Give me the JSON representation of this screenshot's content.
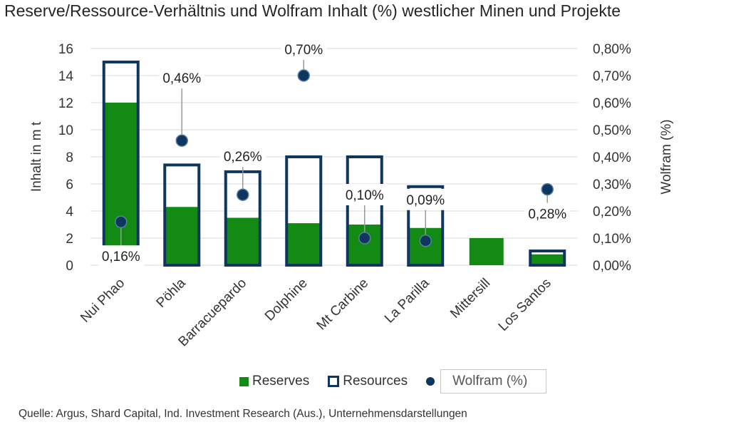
{
  "title": "Reserve/Ressource-Verhältnis und Wolfram Inhalt (%) westlicher Minen und Projekte",
  "source": "Quelle: Argus, Shard Capital, Ind. Investment Research (Aus.), Unternehmensdarstellungen",
  "legend": {
    "reserves": "Reserves",
    "resources": "Resources",
    "wolfram": "Wolfram (%)"
  },
  "colors": {
    "reserves": "#138a14",
    "resources": "#0f365e",
    "marker": "#0f365e",
    "grid": "#d9d9d9"
  },
  "chart_data": {
    "type": "bar",
    "title": "Reserve/Ressource-Verhältnis und Wolfram Inhalt (%) westlicher Minen und Projekte",
    "categories": [
      "Nui Phao",
      "Pöhla",
      "Barracuepardo",
      "Dolphine",
      "Mt Carbine",
      "La Parilla",
      "Mittersill",
      "Los Santos"
    ],
    "series": [
      {
        "name": "Reserves",
        "type": "bar",
        "axis": "left",
        "values": [
          12,
          4.3,
          3.5,
          3.1,
          3.0,
          2.75,
          2.0,
          0.8
        ]
      },
      {
        "name": "Resources",
        "type": "bar-outline",
        "axis": "left",
        "values": [
          15,
          7.4,
          6.9,
          8.0,
          8.0,
          5.8,
          null,
          1.05
        ]
      },
      {
        "name": "Wolfram (%)",
        "type": "scatter",
        "axis": "right",
        "values": [
          0.16,
          0.46,
          0.26,
          0.7,
          0.1,
          0.09,
          null,
          0.28
        ],
        "labels": [
          "0,16%",
          "0,46%",
          "0,26%",
          "0,70%",
          "0,10%",
          "0,09%",
          "",
          "0,28%"
        ]
      }
    ],
    "ylabel": "Inhalt in m t",
    "y2label": "Wolfram (%)",
    "ylim": [
      0,
      16
    ],
    "y_ticks": [
      "0",
      "2",
      "4",
      "6",
      "8",
      "10",
      "12",
      "14",
      "16"
    ],
    "y2lim": [
      0,
      0.8
    ],
    "y2_ticks": [
      "0,00%",
      "0,10%",
      "0,20%",
      "0,30%",
      "0,40%",
      "0,50%",
      "0,60%",
      "0,70%",
      "0,80%"
    ],
    "grid": true,
    "legend_position": "bottom"
  }
}
